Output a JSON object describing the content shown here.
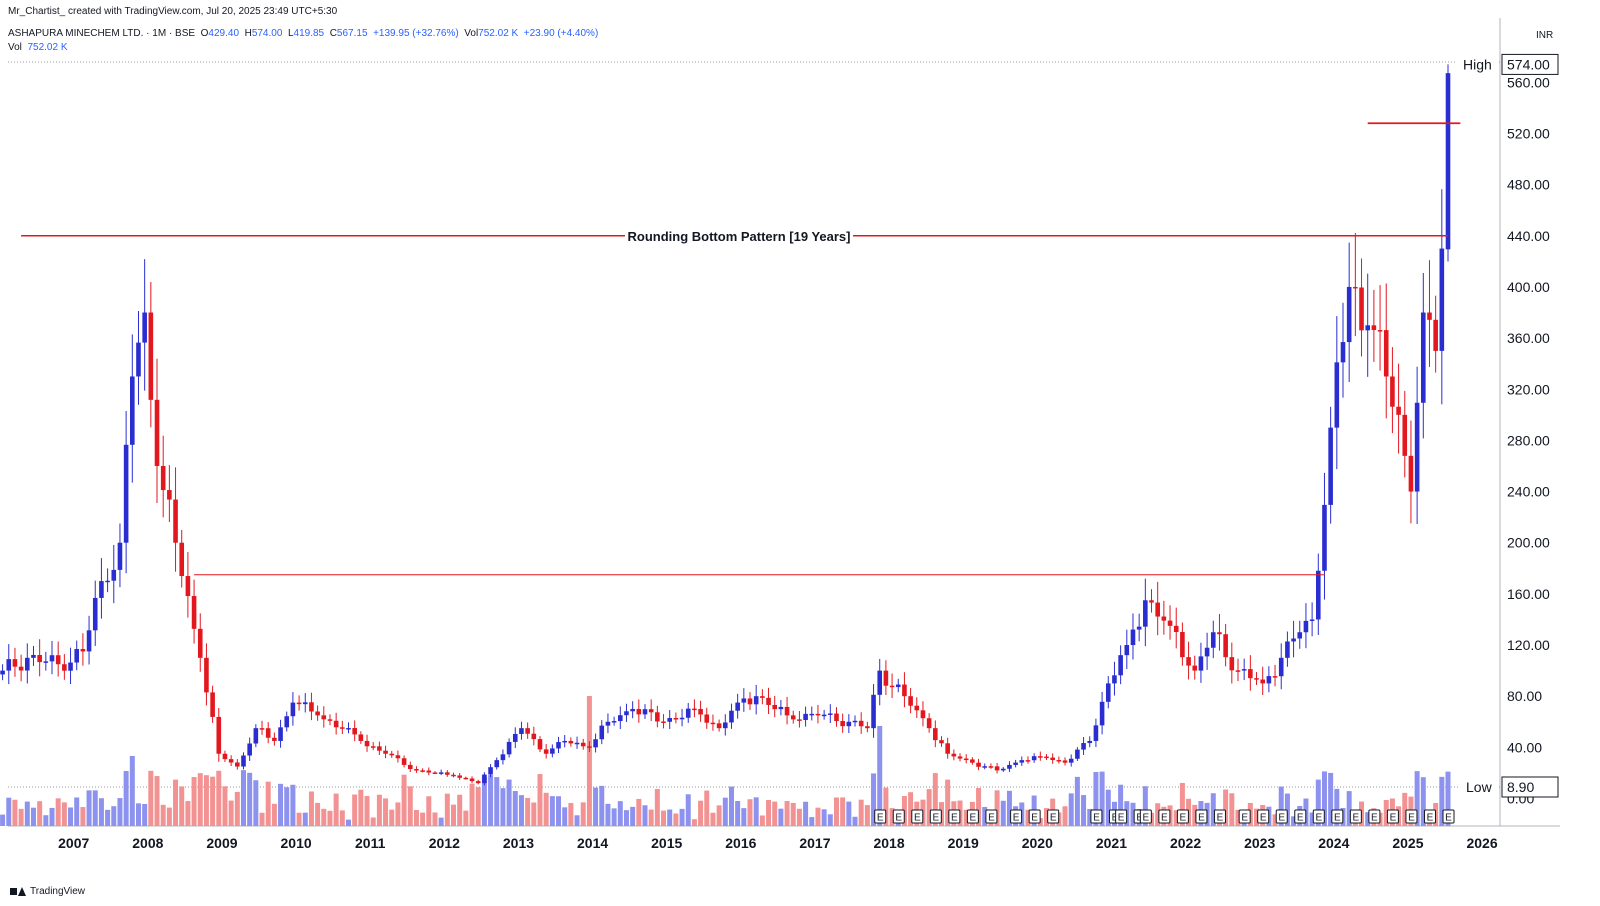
{
  "header": {
    "credit": "Mr_Chartist_ created with TradingView.com, Jul 20, 2025 23:49 UTC+5:30",
    "symbol": "ASHAPURA MINECHEM LTD. · 1M · BSE",
    "o_label": "O",
    "o": "429.40",
    "h_label": "H",
    "h": "574.00",
    "l_label": "L",
    "l": "419.85",
    "c_label": "C",
    "c": "567.15",
    "change": "+139.95 (+32.76%)",
    "vol_label": "Vol",
    "vol": "752.02 K",
    "vol_change": "+23.90 (+4.40%)",
    "vol_row_label": "Vol",
    "vol_row_value": "752.02 K"
  },
  "axis": {
    "unit": "INR"
  },
  "markers": {
    "high_label": "High",
    "high_value": "574.00",
    "low_label": "Low",
    "low_value": "8.90"
  },
  "footer": {
    "brand": "TradingView"
  },
  "colors": {
    "up": "#2a2ed1",
    "down": "#e3171e",
    "vol_up": "#8c92ee",
    "vol_down": "#f29292",
    "grid": "#e0e3eb",
    "text": "#131722",
    "line": "#e3171e"
  },
  "chart_data": {
    "type": "candlestick",
    "title": "ASHAPURA MINECHEM LTD. · 1M · BSE",
    "interval": "1M",
    "currency": "INR",
    "y_ticks": [
      0,
      40,
      80,
      120,
      160,
      200,
      240,
      280,
      320,
      360,
      400,
      440,
      480,
      520,
      560
    ],
    "y_tick_labels": [
      "0.00",
      "40.00",
      "80.00",
      "120.00",
      "160.00",
      "200.00",
      "240.00",
      "280.00",
      "320.00",
      "360.00",
      "400.00",
      "440.00",
      "480.00",
      "520.00",
      "560.00"
    ],
    "ylim": [
      0,
      600
    ],
    "x_labels": [
      "2007",
      "2008",
      "2009",
      "2010",
      "2011",
      "2012",
      "2013",
      "2014",
      "2015",
      "2016",
      "2017",
      "2018",
      "2019",
      "2020",
      "2021",
      "2022",
      "2023",
      "2024",
      "2025",
      "2026"
    ],
    "first_month": "2006-01",
    "earnings_marker": "E",
    "annotation": "Rounding Bottom Pattern [19 Years]",
    "horizontal_lines": [
      {
        "value": 440,
        "from": "2006-04",
        "to": "2025-07",
        "label": "Rounding Bottom Pattern [19 Years]"
      },
      {
        "value": 175,
        "from": "2008-08",
        "to": "2023-11"
      },
      {
        "value": 528,
        "from": "2024-06",
        "to": "2025-09"
      }
    ],
    "anchors": [
      [
        "2006-01",
        100
      ],
      [
        "2006-05",
        110
      ],
      [
        "2006-10",
        105
      ],
      [
        "2007-02",
        115
      ],
      [
        "2007-05",
        170
      ],
      [
        "2007-08",
        200
      ],
      [
        "2007-10",
        330
      ],
      [
        "2007-12",
        380
      ],
      [
        "2008-02",
        260
      ],
      [
        "2008-05",
        200
      ],
      [
        "2008-09",
        110
      ],
      [
        "2008-12",
        35
      ],
      [
        "2009-03",
        25
      ],
      [
        "2009-06",
        55
      ],
      [
        "2009-09",
        45
      ],
      [
        "2009-12",
        75
      ],
      [
        "2010-04",
        65
      ],
      [
        "2010-08",
        55
      ],
      [
        "2010-11",
        45
      ],
      [
        "2011-03",
        35
      ],
      [
        "2011-08",
        22
      ],
      [
        "2012-02",
        18
      ],
      [
        "2012-06",
        12
      ],
      [
        "2012-09",
        30
      ],
      [
        "2013-01",
        55
      ],
      [
        "2013-05",
        35
      ],
      [
        "2013-08",
        45
      ],
      [
        "2013-12",
        40
      ],
      [
        "2014-03",
        60
      ],
      [
        "2014-07",
        70
      ],
      [
        "2014-12",
        60
      ],
      [
        "2015-05",
        70
      ],
      [
        "2015-09",
        55
      ],
      [
        "2015-12",
        75
      ],
      [
        "2016-03",
        80
      ],
      [
        "2016-08",
        65
      ],
      [
        "2017-01",
        65
      ],
      [
        "2017-06",
        60
      ],
      [
        "2017-09",
        55
      ],
      [
        "2017-11",
        100
      ],
      [
        "2018-03",
        80
      ],
      [
        "2018-07",
        55
      ],
      [
        "2018-10",
        35
      ],
      [
        "2019-02",
        28
      ],
      [
        "2019-06",
        22
      ],
      [
        "2019-10",
        30
      ],
      [
        "2020-02",
        32
      ],
      [
        "2020-05",
        28
      ],
      [
        "2020-09",
        45
      ],
      [
        "2020-12",
        90
      ],
      [
        "2021-03",
        120
      ],
      [
        "2021-06",
        155
      ],
      [
        "2021-10",
        135
      ],
      [
        "2022-02",
        100
      ],
      [
        "2022-05",
        130
      ],
      [
        "2022-09",
        100
      ],
      [
        "2023-01",
        90
      ],
      [
        "2023-04",
        110
      ],
      [
        "2023-07",
        130
      ],
      [
        "2023-09",
        140
      ],
      [
        "2023-12",
        290
      ],
      [
        "2024-03",
        400
      ],
      [
        "2024-06",
        370
      ],
      [
        "2024-09",
        330
      ],
      [
        "2024-11",
        300
      ],
      [
        "2025-01",
        240
      ],
      [
        "2025-03",
        380
      ],
      [
        "2025-05",
        350
      ],
      [
        "2025-06",
        430
      ],
      [
        "2025-07",
        567
      ]
    ],
    "last_candle": {
      "month": "2025-07",
      "open": 429.4,
      "high": 574.0,
      "low": 419.85,
      "close": 567.15,
      "volume": "752.02 K"
    },
    "high": 574.0,
    "low": 8.9
  }
}
